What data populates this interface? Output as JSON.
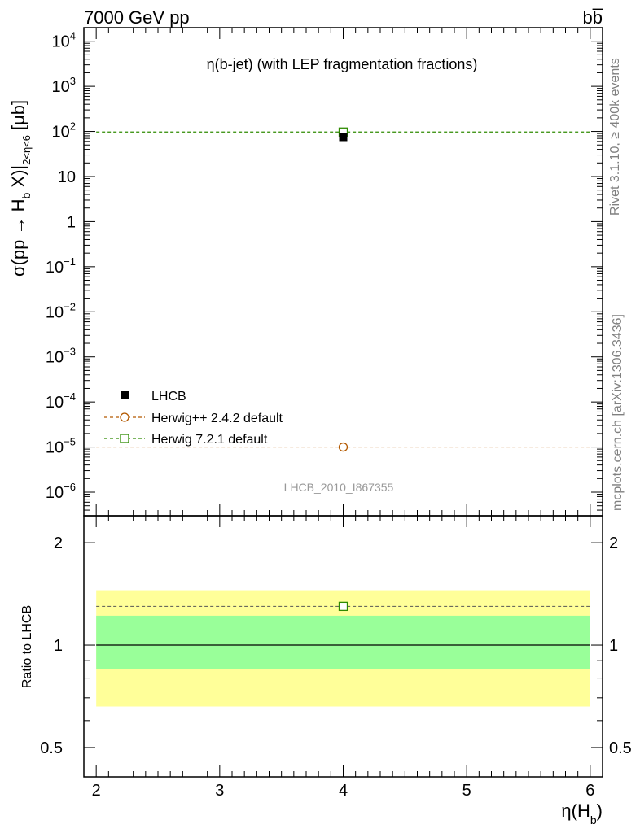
{
  "header": {
    "energy_label": "7000 GeV pp",
    "process_label": "bb̅"
  },
  "side_labels": {
    "rivet": "Rivet 3.1.10, ≥ 400k events",
    "mcplots": "mcplots.cern.ch [arXiv:1306.3436]"
  },
  "chart_data": [
    {
      "type": "scatter",
      "title": "η(b-jet) (with LEP fragmentation fractions)",
      "watermark": "LHCB_2010_I867355",
      "ylabel_main": "σ(pp → H",
      "ylabel_sub_b": "b",
      "ylabel_rest": " X)|",
      "ylabel_range": "2<η<6",
      "ylabel_unit": "[μb]",
      "yscale": "log",
      "ylim": [
        3e-07,
        20000
      ],
      "xlim": [
        1.9,
        6.1
      ],
      "y_tick_labels": [
        {
          "base": "10",
          "exp": "4",
          "value": 10000
        },
        {
          "base": "10",
          "exp": "3",
          "value": 1000
        },
        {
          "base": "10",
          "exp": "2",
          "value": 100
        },
        {
          "base": "10",
          "exp": "",
          "value": 10
        },
        {
          "base": "1",
          "exp": "",
          "value": 1
        },
        {
          "base": "10",
          "exp": "−1",
          "value": 0.1
        },
        {
          "base": "10",
          "exp": "−2",
          "value": 0.01
        },
        {
          "base": "10",
          "exp": "−3",
          "value": 0.001
        },
        {
          "base": "10",
          "exp": "−4",
          "value": 0.0001
        },
        {
          "base": "10",
          "exp": "−5",
          "value": 1e-05
        },
        {
          "base": "10",
          "exp": "−6",
          "value": 1e-06
        }
      ],
      "series": [
        {
          "name": "LHCB",
          "style": "data",
          "color": "#000000",
          "marker": "filled-square",
          "x": [
            4
          ],
          "y": [
            75
          ],
          "xerr": [
            2
          ]
        },
        {
          "name": "Herwig++ 2.4.2 default",
          "style": "mc",
          "color": "#b35900",
          "marker": "open-circle",
          "x": [
            4
          ],
          "y": [
            1e-05
          ],
          "xrange": [
            2,
            6
          ]
        },
        {
          "name": "Herwig 7.2.1 default",
          "style": "mc",
          "color": "#2e8b00",
          "marker": "open-square",
          "x": [
            4
          ],
          "y": [
            97
          ],
          "xrange": [
            2,
            6
          ]
        }
      ],
      "legend_position": "bottom-left"
    },
    {
      "type": "scatter",
      "ylabel": "Ratio to LHCB",
      "xlabel_main": "η(H",
      "xlabel_sub": "b",
      "xlabel_close": ")",
      "yscale": "log",
      "ylim": [
        0.41,
        2.4
      ],
      "xlim": [
        1.9,
        6.1
      ],
      "x_ticks": [
        2,
        3,
        4,
        5,
        6
      ],
      "y_ticks": [
        0.5,
        1,
        2
      ],
      "reference_line": 1.0,
      "bands": [
        {
          "name": "outer",
          "color": "#ffff99",
          "x": [
            2,
            6
          ],
          "low": 0.66,
          "high": 1.45
        },
        {
          "name": "inner",
          "color": "#99ff99",
          "x": [
            2,
            6
          ],
          "low": 0.85,
          "high": 1.22
        }
      ],
      "series": [
        {
          "name": "Herwig 7.2.1 default",
          "color": "#2e8b00",
          "marker": "open-square",
          "x": [
            4
          ],
          "y": [
            1.3
          ],
          "xrange": [
            2,
            6
          ]
        }
      ]
    }
  ]
}
